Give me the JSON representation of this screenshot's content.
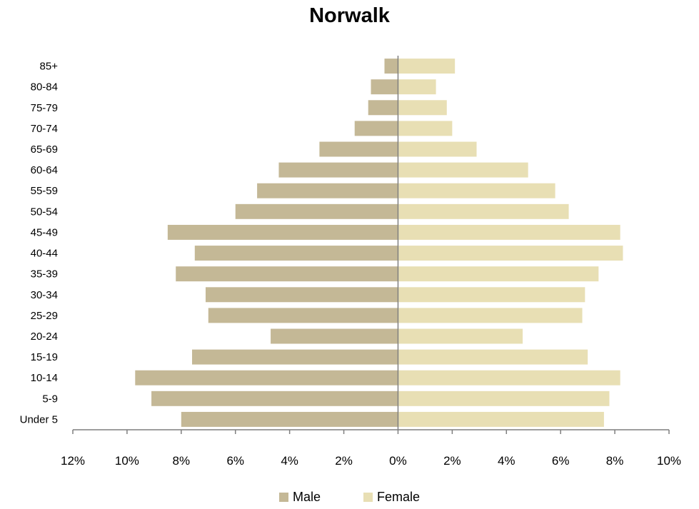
{
  "chart_data": {
    "type": "bar",
    "orientation": "horizontal",
    "title": "Norwalk",
    "categories": [
      "Under 5",
      "5-9",
      "10-14",
      "15-19",
      "20-24",
      "25-29",
      "30-34",
      "35-39",
      "40-44",
      "45-49",
      "50-54",
      "55-59",
      "60-64",
      "65-69",
      "70-74",
      "75-79",
      "80-84",
      "85+"
    ],
    "series": [
      {
        "name": "Male",
        "color": "#c4b896",
        "values": [
          8.0,
          9.1,
          9.7,
          7.6,
          4.7,
          7.0,
          7.1,
          8.2,
          7.5,
          8.5,
          6.0,
          5.2,
          4.4,
          2.9,
          1.6,
          1.1,
          1.0,
          0.5
        ]
      },
      {
        "name": "Female",
        "color": "#e8dfb4",
        "values": [
          7.6,
          7.8,
          8.2,
          7.0,
          4.6,
          6.8,
          6.9,
          7.4,
          8.3,
          8.2,
          6.3,
          5.8,
          4.8,
          2.9,
          2.0,
          1.8,
          1.4,
          2.1
        ]
      }
    ],
    "xlim": [
      -12,
      10
    ],
    "x_ticks": [
      -12,
      -10,
      -8,
      -6,
      -4,
      -2,
      0,
      2,
      4,
      6,
      8,
      10
    ],
    "x_tick_labels": [
      "12%",
      "10%",
      "8%",
      "6%",
      "4%",
      "2%",
      "0%",
      "2%",
      "4%",
      "6%",
      "8%",
      "10%"
    ],
    "grid": false,
    "legend_position": "bottom"
  }
}
